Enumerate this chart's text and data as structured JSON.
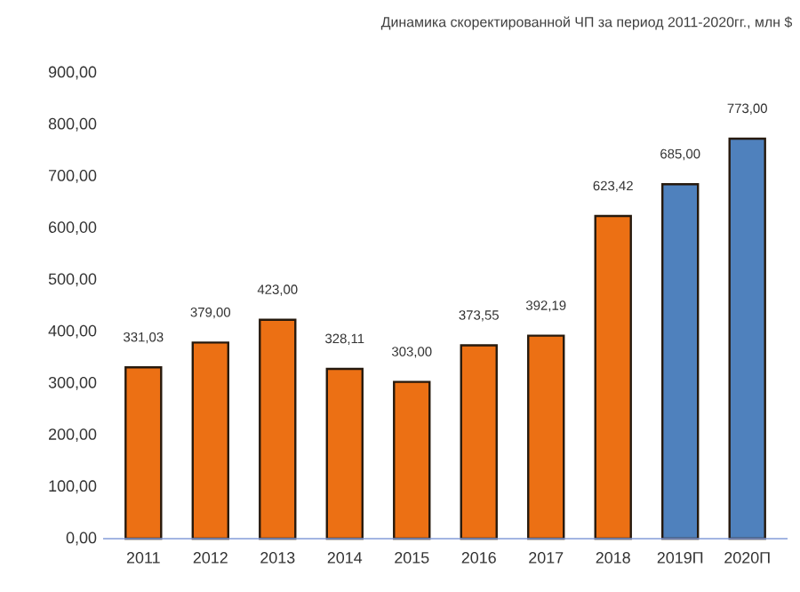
{
  "chart_data": {
    "type": "bar",
    "title": "Динамика скоректированной ЧП за период 2011-2020гг., млн $",
    "categories": [
      "2011",
      "2012",
      "2013",
      "2014",
      "2015",
      "2016",
      "2017",
      "2018",
      "2019П",
      "2020П"
    ],
    "values": [
      331.03,
      379.0,
      423.0,
      328.11,
      303.0,
      373.55,
      392.19,
      623.42,
      685.0,
      773.0
    ],
    "value_labels": [
      "331,03",
      "379,00",
      "423,00",
      "328,11",
      "303,00",
      "373,55",
      "392,19",
      "623,42",
      "685,00",
      "773,00"
    ],
    "colors": [
      "#ec7014",
      "#ec7014",
      "#ec7014",
      "#ec7014",
      "#ec7014",
      "#ec7014",
      "#ec7014",
      "#ec7014",
      "#4f81bd",
      "#4f81bd"
    ],
    "ylim": [
      0,
      900
    ],
    "yticks": [
      {
        "value": 0,
        "label": "0,00"
      },
      {
        "value": 100,
        "label": "100,00"
      },
      {
        "value": 200,
        "label": "200,00"
      },
      {
        "value": 300,
        "label": "300,00"
      },
      {
        "value": 400,
        "label": "400,00"
      },
      {
        "value": 500,
        "label": "500,00"
      },
      {
        "value": 600,
        "label": "600,00"
      },
      {
        "value": 700,
        "label": "700,00"
      },
      {
        "value": 800,
        "label": "800,00"
      },
      {
        "value": 900,
        "label": "900,00"
      }
    ],
    "grid": false
  }
}
